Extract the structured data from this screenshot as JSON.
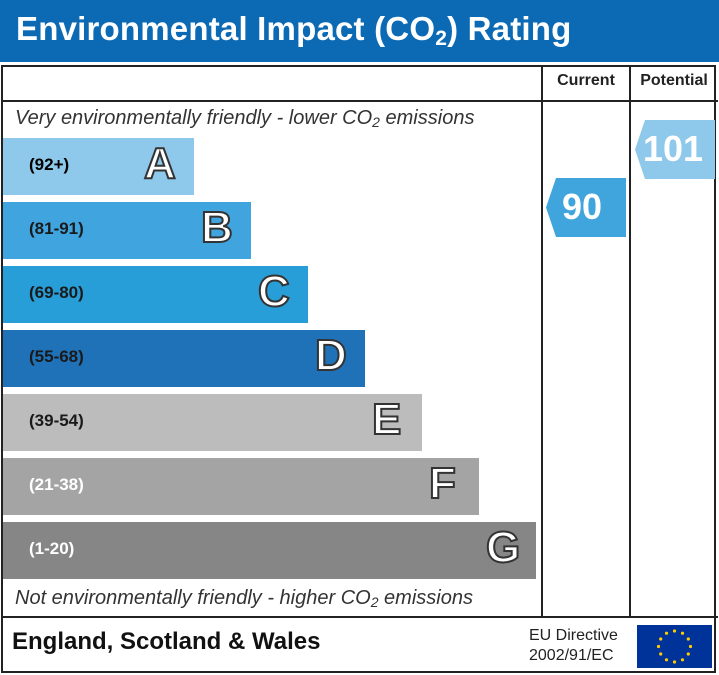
{
  "header": {
    "title_pre": "Environmental Impact (CO",
    "title_sub": "2",
    "title_post": ") Rating"
  },
  "columns": {
    "current": "Current",
    "potential": "Potential"
  },
  "top_note": {
    "pre": "Very environmentally friendly - lower CO",
    "sub": "2",
    "post": " emissions"
  },
  "bottom_note": {
    "pre": "Not environmentally friendly - higher CO",
    "sub": "2",
    "post": " emissions"
  },
  "chart_data": {
    "type": "bar",
    "categories": [
      "A",
      "B",
      "C",
      "D",
      "E",
      "F",
      "G"
    ],
    "ranges": [
      "(92+)",
      "(81-91)",
      "(69-80)",
      "(55-68)",
      "(39-54)",
      "(21-38)",
      "(1-20)"
    ],
    "colors": [
      "#8ec8ea",
      "#40a5de",
      "#289ed8",
      "#1f72b8",
      "#bcbcbc",
      "#a4a4a4",
      "#868686"
    ],
    "range_text_colors": [
      "#000000",
      "#1a1a1a",
      "#1a1a1a",
      "#1a1a1a",
      "#1a1a1a",
      "#ffffff",
      "#ffffff"
    ],
    "current": {
      "value": 90,
      "band": "B",
      "color": "#41a5dd"
    },
    "potential": {
      "value": 101,
      "band": "A",
      "color": "#8ec8ea"
    }
  },
  "footer": {
    "region": "England, Scotland & Wales",
    "directive_line1": "EU Directive",
    "directive_line2": "2002/91/EC"
  }
}
